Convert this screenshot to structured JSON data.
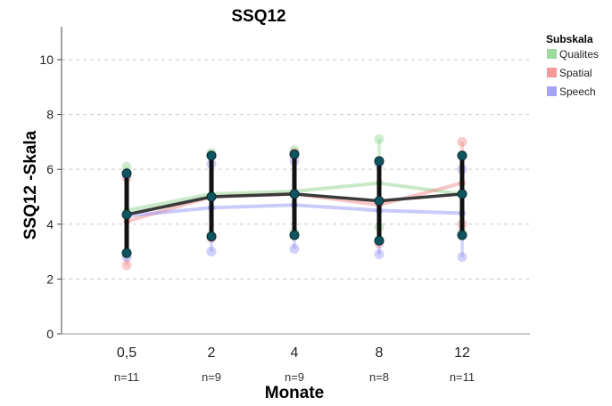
{
  "chart_data": {
    "type": "line",
    "title": "SSQ12",
    "ylabel": "SSQ12 -Skala",
    "xlabel": "Monate",
    "ylim": [
      0,
      11.2
    ],
    "yticks": [
      0,
      2,
      4,
      6,
      8,
      10
    ],
    "categories": [
      "0,5",
      "2",
      "4",
      "8",
      "12"
    ],
    "sample_sizes": [
      "n=11",
      "n=9",
      "n=9",
      "n=8",
      "n=11"
    ],
    "grid": true,
    "legend": {
      "title": "Subskala",
      "position": "top-right"
    },
    "series": [
      {
        "name": "Qualites",
        "color": "#86cf86",
        "values": [
          4.5,
          5.1,
          5.2,
          5.5,
          5.1
        ],
        "upper": [
          6.1,
          6.6,
          6.7,
          7.1,
          6.5
        ],
        "lower": [
          2.9,
          3.6,
          3.7,
          3.9,
          3.7
        ]
      },
      {
        "name": "Spatial",
        "color": "#f08080",
        "values": [
          4.1,
          5.0,
          5.1,
          4.7,
          5.5
        ],
        "upper": [
          5.7,
          6.5,
          6.6,
          6.3,
          7.0
        ],
        "lower": [
          2.5,
          3.5,
          3.6,
          3.3,
          4.0
        ]
      },
      {
        "name": "Speech",
        "color": "#8c8cf5",
        "values": [
          4.3,
          4.6,
          4.7,
          4.5,
          4.4
        ],
        "upper": [
          5.8,
          6.2,
          6.3,
          6.2,
          6.0
        ],
        "lower": [
          2.8,
          3.0,
          3.1,
          2.9,
          2.8
        ]
      }
    ],
    "overall": {
      "color": "#3a3a3a",
      "values": [
        4.35,
        5.0,
        5.1,
        4.85,
        5.1
      ],
      "upper": [
        5.85,
        6.5,
        6.55,
        6.3,
        6.5
      ],
      "lower": [
        2.95,
        3.55,
        3.6,
        3.4,
        3.6
      ]
    }
  }
}
